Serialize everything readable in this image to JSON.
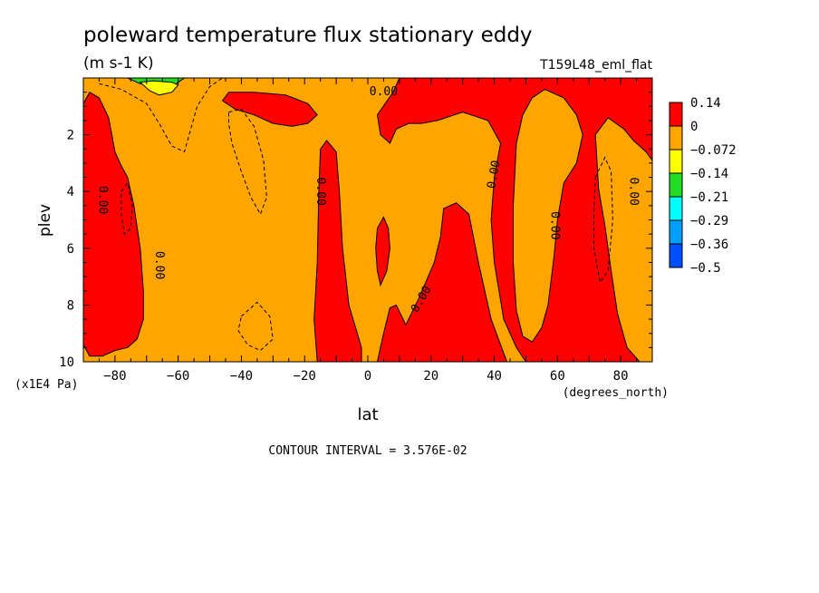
{
  "chart_data": {
    "type": "heatmap",
    "title": "poleward temperature flux stationary eddy",
    "units": "(m s-1 K)",
    "run_label": "T159L48_eml_flat",
    "xlabel": "lat",
    "x_units": "(degrees_north)",
    "ylabel": "plev",
    "y_units": "(x1E4 Pa)",
    "xlim": [
      -90,
      90
    ],
    "ylim": [
      10,
      0
    ],
    "x_ticks": [
      -80,
      -60,
      -40,
      -20,
      0,
      20,
      40,
      60,
      80
    ],
    "y_ticks": [
      2,
      4,
      6,
      8,
      10
    ],
    "contour_interval": "CONTOUR INTERVAL = 3.576E-02",
    "contour_label": "0.00",
    "colorbar": [
      {
        "label": "0.14",
        "color": "#ff0000"
      },
      {
        "label": "0",
        "color": "#ffa500"
      },
      {
        "label": "-0.072",
        "color": "#ffff00"
      },
      {
        "label": "-0.14",
        "color": "#22dd22"
      },
      {
        "label": "-0.21",
        "color": "#00ffff"
      },
      {
        "label": "-0.29",
        "color": "#00a0ff"
      },
      {
        "label": "-0.36",
        "color": "#0050ff"
      },
      {
        "label": "-0.5",
        "color": null
      }
    ],
    "background_color": "#ffa500",
    "regions": [
      {
        "name": "positive-region-south-polar",
        "fill": "#ff0000",
        "points": [
          [
            -90,
            0.9
          ],
          [
            -88,
            0.5
          ],
          [
            -85,
            0.7
          ],
          [
            -82,
            1.4
          ],
          [
            -80,
            2.6
          ],
          [
            -78,
            3.1
          ],
          [
            -76,
            3.5
          ],
          [
            -74,
            4.5
          ],
          [
            -72,
            6
          ],
          [
            -71,
            7.5
          ],
          [
            -71,
            8.5
          ],
          [
            -73,
            9.2
          ],
          [
            -76,
            9.5
          ],
          [
            -80,
            9.6
          ],
          [
            -84,
            9.8
          ],
          [
            -88,
            9.8
          ],
          [
            -90,
            9.4
          ]
        ]
      },
      {
        "name": "positive-region-midlat-south-upper",
        "fill": "#ff0000",
        "points": [
          [
            -46,
            0.8
          ],
          [
            -44,
            0.5
          ],
          [
            -36,
            0.5
          ],
          [
            -26,
            0.6
          ],
          [
            -19,
            0.9
          ],
          [
            -16,
            1.3
          ],
          [
            -19,
            1.6
          ],
          [
            -24,
            1.7
          ],
          [
            -30,
            1.6
          ],
          [
            -36,
            1.3
          ],
          [
            -42,
            1.1
          ]
        ]
      },
      {
        "name": "positive-region-tropics-south",
        "fill": "#ff0000",
        "points": [
          [
            -15,
            2.5
          ],
          [
            -13,
            2.2
          ],
          [
            -10,
            2.6
          ],
          [
            -9,
            4
          ],
          [
            -8,
            6
          ],
          [
            -6,
            8
          ],
          [
            -2,
            9.5
          ],
          [
            -2,
            10
          ],
          [
            -16,
            10
          ],
          [
            -17,
            8.5
          ],
          [
            -16,
            6.5
          ],
          [
            -15.5,
            4
          ]
        ]
      },
      {
        "name": "positive-region-upper-north",
        "fill": "#ff0000",
        "points": [
          [
            3,
            1.3
          ],
          [
            8,
            0.5
          ],
          [
            10,
            0
          ],
          [
            90,
            0
          ],
          [
            90,
            10
          ],
          [
            50,
            10
          ],
          [
            47,
            9.5
          ],
          [
            43,
            8.5
          ],
          [
            40,
            6.5
          ],
          [
            39,
            5
          ],
          [
            40,
            3.5
          ],
          [
            42,
            2.3
          ],
          [
            38,
            1.5
          ],
          [
            30,
            1.2
          ],
          [
            22,
            1.5
          ],
          [
            17,
            1.6
          ],
          [
            13,
            1.6
          ],
          [
            9,
            1.8
          ],
          [
            7,
            2.3
          ],
          [
            4,
            2
          ]
        ]
      },
      {
        "name": "positive-region-tropics-north-tongue",
        "fill": "#ff0000",
        "points": [
          [
            24,
            4.6
          ],
          [
            28,
            4.4
          ],
          [
            32,
            4.8
          ],
          [
            35,
            6.5
          ],
          [
            39,
            8.5
          ],
          [
            44,
            10
          ],
          [
            3,
            10
          ],
          [
            5,
            9
          ],
          [
            7,
            8.1
          ],
          [
            9,
            8
          ],
          [
            12,
            8.7
          ],
          [
            16,
            7.8
          ],
          [
            21,
            6.5
          ],
          [
            23,
            5.6
          ]
        ]
      },
      {
        "name": "positive-region-equator-upper-blob",
        "fill": "#ff0000",
        "points": [
          [
            2.5,
            6
          ],
          [
            3,
            5.3
          ],
          [
            5,
            4.9
          ],
          [
            6.5,
            5.3
          ],
          [
            7,
            6
          ],
          [
            6,
            6.8
          ],
          [
            4,
            7.3
          ],
          [
            3,
            6.8
          ]
        ]
      },
      {
        "name": "negative-region-north-midlat",
        "fill": "#ffa500",
        "points": [
          [
            47,
            2.3
          ],
          [
            49,
            1.3
          ],
          [
            52,
            0.7
          ],
          [
            56,
            0.4
          ],
          [
            62,
            0.7
          ],
          [
            66,
            1.3
          ],
          [
            68,
            2
          ],
          [
            66,
            3
          ],
          [
            62,
            3.7
          ],
          [
            60,
            5
          ],
          [
            59,
            6.2
          ],
          [
            58,
            7.1
          ],
          [
            57,
            8
          ],
          [
            55,
            8.8
          ],
          [
            52,
            9.3
          ],
          [
            49,
            9.1
          ],
          [
            47,
            8.2
          ],
          [
            46,
            6.5
          ],
          [
            46,
            4.5
          ]
        ]
      },
      {
        "name": "negative-region-north-polar",
        "fill": "#ffa500",
        "points": [
          [
            72,
            2
          ],
          [
            76,
            1.4
          ],
          [
            81,
            1.8
          ],
          [
            84,
            2.2
          ],
          [
            88,
            2.6
          ],
          [
            90,
            2.9
          ],
          [
            90,
            10
          ],
          [
            86,
            10
          ],
          [
            82,
            9.5
          ],
          [
            79,
            8.3
          ],
          [
            77,
            6.8
          ],
          [
            75,
            5.2
          ],
          [
            73,
            3.9
          ]
        ]
      },
      {
        "name": "negative-region-top-green",
        "fill": "#22dd22",
        "points": [
          [
            -76,
            0
          ],
          [
            -58,
            0
          ],
          [
            -62,
            0.3
          ],
          [
            -66,
            0.35
          ],
          [
            -72,
            0.2
          ]
        ]
      },
      {
        "name": "negative-region-top-yellow",
        "fill": "#ffff00",
        "points": [
          [
            -72,
            0.15
          ],
          [
            -68,
            0.1
          ],
          [
            -62,
            0.15
          ],
          [
            -60,
            0.25
          ],
          [
            -62,
            0.5
          ],
          [
            -66,
            0.6
          ],
          [
            -69,
            0.45
          ]
        ]
      }
    ],
    "dashed_contours": [
      {
        "name": "dashed-contour-top-south",
        "points": [
          [
            -85,
            0.2
          ],
          [
            -78,
            0.4
          ],
          [
            -70,
            0.9
          ],
          [
            -66,
            1.6
          ],
          [
            -62,
            2.4
          ],
          [
            -58,
            2.6
          ],
          [
            -56,
            1.8
          ],
          [
            -54,
            1
          ],
          [
            -50,
            0.3
          ],
          [
            -46,
            0
          ]
        ]
      },
      {
        "name": "dashed-contour-midlat-south",
        "points": [
          [
            -44,
            1.2
          ],
          [
            -40,
            1.1
          ],
          [
            -36,
            1.7
          ],
          [
            -33,
            2.9
          ],
          [
            -32,
            4.2
          ],
          [
            -34,
            4.8
          ],
          [
            -37,
            4.2
          ],
          [
            -40,
            3.3
          ],
          [
            -43,
            2.3
          ],
          [
            -44,
            1.6
          ],
          [
            -44,
            1.2
          ]
        ]
      },
      {
        "name": "dashed-contour-lower-south",
        "points": [
          [
            -40,
            8.4
          ],
          [
            -35,
            7.9
          ],
          [
            -31,
            8.4
          ],
          [
            -30,
            9.2
          ],
          [
            -34,
            9.6
          ],
          [
            -38,
            9.4
          ],
          [
            -41,
            8.9
          ],
          [
            -40,
            8.4
          ]
        ]
      },
      {
        "name": "dashed-contour-south-polar-inner",
        "points": [
          [
            -78,
            4
          ],
          [
            -76,
            3.7
          ],
          [
            -74.5,
            4.5
          ],
          [
            -75,
            5.3
          ],
          [
            -77,
            5.5
          ],
          [
            -78,
            4.8
          ],
          [
            -78,
            4
          ]
        ]
      },
      {
        "name": "dashed-contour-north-polar-inner",
        "points": [
          [
            72,
            3.5
          ],
          [
            75,
            2.8
          ],
          [
            77,
            3.3
          ],
          [
            77.5,
            5
          ],
          [
            76,
            6.8
          ],
          [
            73.5,
            7.2
          ],
          [
            71.5,
            6
          ],
          [
            71.5,
            4.8
          ],
          [
            72,
            3.5
          ]
        ]
      }
    ],
    "contour_labels": [
      {
        "lat": -84,
        "plev": 4.3,
        "rotate": 90
      },
      {
        "lat": -66,
        "plev": 6.6,
        "rotate": 90
      },
      {
        "lat": -15,
        "plev": 4.0,
        "rotate": 90
      },
      {
        "lat": 5,
        "plev": 0.5,
        "rotate": 0
      },
      {
        "lat": 17,
        "plev": 7.8,
        "rotate": -60
      },
      {
        "lat": 40,
        "plev": 3.4,
        "rotate": -80
      },
      {
        "lat": 59,
        "plev": 5.2,
        "rotate": 90
      },
      {
        "lat": 84,
        "plev": 4.0,
        "rotate": 90
      }
    ]
  }
}
